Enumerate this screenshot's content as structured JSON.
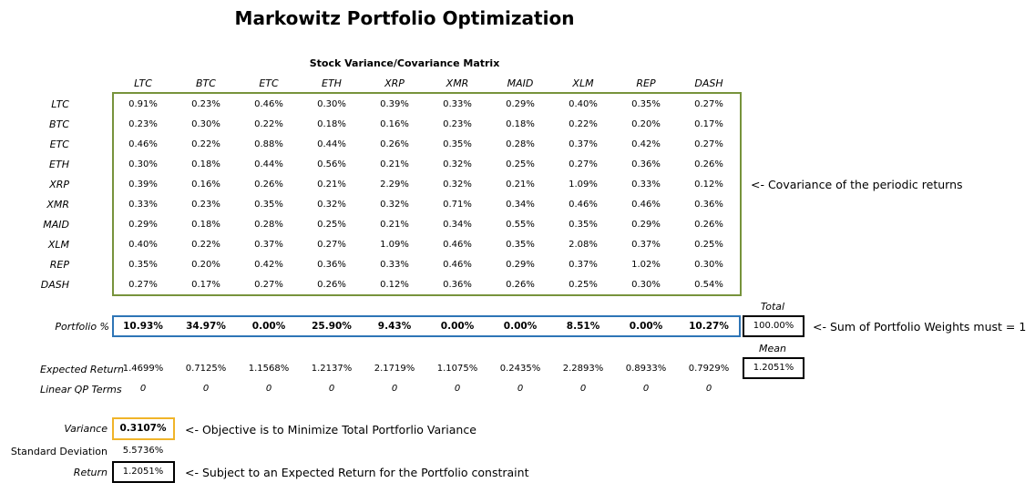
{
  "title": "Markowitz Portfolio Optimization",
  "matrix_title": "Stock Variance/Covariance Matrix",
  "assets": [
    "LTC",
    "BTC",
    "ETC",
    "ETH",
    "XRP",
    "XMR",
    "MAID",
    "XLM",
    "REP",
    "DASH"
  ],
  "covariance": [
    [
      "0.91%",
      "0.23%",
      "0.46%",
      "0.30%",
      "0.39%",
      "0.33%",
      "0.29%",
      "0.40%",
      "0.35%",
      "0.27%"
    ],
    [
      "0.23%",
      "0.30%",
      "0.22%",
      "0.18%",
      "0.16%",
      "0.23%",
      "0.18%",
      "0.22%",
      "0.20%",
      "0.17%"
    ],
    [
      "0.46%",
      "0.22%",
      "0.88%",
      "0.44%",
      "0.26%",
      "0.35%",
      "0.28%",
      "0.37%",
      "0.42%",
      "0.27%"
    ],
    [
      "0.30%",
      "0.18%",
      "0.44%",
      "0.56%",
      "0.21%",
      "0.32%",
      "0.25%",
      "0.27%",
      "0.36%",
      "0.26%"
    ],
    [
      "0.39%",
      "0.16%",
      "0.26%",
      "0.21%",
      "2.29%",
      "0.32%",
      "0.21%",
      "1.09%",
      "0.33%",
      "0.12%"
    ],
    [
      "0.33%",
      "0.23%",
      "0.35%",
      "0.32%",
      "0.32%",
      "0.71%",
      "0.34%",
      "0.46%",
      "0.46%",
      "0.36%"
    ],
    [
      "0.29%",
      "0.18%",
      "0.28%",
      "0.25%",
      "0.21%",
      "0.34%",
      "0.55%",
      "0.35%",
      "0.29%",
      "0.26%"
    ],
    [
      "0.40%",
      "0.22%",
      "0.37%",
      "0.27%",
      "1.09%",
      "0.46%",
      "0.35%",
      "2.08%",
      "0.37%",
      "0.25%"
    ],
    [
      "0.35%",
      "0.20%",
      "0.42%",
      "0.36%",
      "0.33%",
      "0.46%",
      "0.29%",
      "0.37%",
      "1.02%",
      "0.30%"
    ],
    [
      "0.27%",
      "0.17%",
      "0.27%",
      "0.26%",
      "0.12%",
      "0.36%",
      "0.26%",
      "0.25%",
      "0.30%",
      "0.54%"
    ]
  ],
  "covariance_note": "<- Covariance of the periodic returns",
  "portfolio": {
    "label": "Portfolio %",
    "weights": [
      "10.93%",
      "34.97%",
      "0.00%",
      "25.90%",
      "9.43%",
      "0.00%",
      "0.00%",
      "8.51%",
      "0.00%",
      "10.27%"
    ],
    "total_label": "Total",
    "total": "100.00%",
    "note": "<- Sum of Portfolio Weights must = 1"
  },
  "expected_return": {
    "label": "Expected Return",
    "values": [
      "1.4699%",
      "0.7125%",
      "1.1568%",
      "1.2137%",
      "2.1719%",
      "1.1075%",
      "0.2435%",
      "2.2893%",
      "0.8933%",
      "0.7929%"
    ],
    "mean_label": "Mean",
    "mean": "1.2051%"
  },
  "linear_qp": {
    "label": "Linear QP Terms",
    "values": [
      "0",
      "0",
      "0",
      "0",
      "0",
      "0",
      "0",
      "0",
      "0",
      "0"
    ]
  },
  "summary": {
    "variance_label": "Variance",
    "variance": "0.3107%",
    "variance_note": "<- Objective is to Minimize Total Portforlio Variance",
    "stddev_label": "Standard Deviation",
    "stddev": "5.5736%",
    "return_label": "Return",
    "return": "1.2051%",
    "return_note": "<- Subject to an Expected Return for the Portfolio constraint"
  },
  "colors": {
    "matrix_border": "#77933c",
    "weights_border": "#2e75b6",
    "variance_border": "#f0b429",
    "total_border": "#000000"
  }
}
